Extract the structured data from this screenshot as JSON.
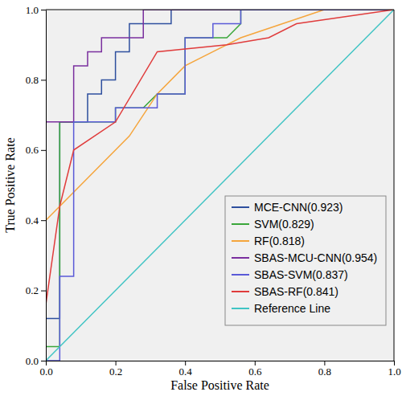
{
  "chart_data": {
    "type": "line",
    "x_label": "False Positive Rate",
    "y_label": "True Positive Rate",
    "xlim": [
      0,
      1
    ],
    "ylim": [
      0,
      1
    ],
    "xticks": [
      {
        "value": 0,
        "label": "0.0"
      },
      0.2,
      0.4,
      0.6,
      0.8,
      {
        "value": 1,
        "label": "1.0"
      }
    ],
    "yticks": [
      {
        "value": 0,
        "label": "0.0"
      },
      0.2,
      0.4,
      0.6,
      0.8,
      {
        "value": 1,
        "label": "1.0"
      }
    ],
    "grid": false,
    "legend": "lower right",
    "series": [
      {
        "name": "MCE-CNN(0.923)",
        "color": "#2e4f9e",
        "x": [
          0,
          0,
          0.04,
          0.04,
          0.12,
          0.12,
          0.16,
          0.16,
          0.2,
          0.2,
          0.24,
          0.24,
          0.36,
          0.36,
          1
        ],
        "values": [
          0,
          0.12,
          0.12,
          0.68,
          0.68,
          0.76,
          0.76,
          0.8,
          0.8,
          0.88,
          0.88,
          0.96,
          0.96,
          1.0,
          1
        ]
      },
      {
        "name": "SVM(0.829)",
        "color": "#3aa63a",
        "x": [
          0,
          0,
          0.04,
          0.04,
          0.2,
          0.2,
          0.28,
          0.32,
          0.4,
          0.4,
          0.52,
          0.56,
          0.56,
          1
        ],
        "values": [
          0,
          0.04,
          0.04,
          0.68,
          0.68,
          0.72,
          0.72,
          0.76,
          0.76,
          0.92,
          0.92,
          0.96,
          1.0,
          1
        ]
      },
      {
        "name": "RF(0.818)",
        "color": "#f5a53c",
        "x": [
          0,
          0,
          0.04,
          0.24,
          0.32,
          0.4,
          0.48,
          0.56,
          0.68,
          0.8,
          1
        ],
        "values": [
          0,
          0.4,
          0.44,
          0.64,
          0.76,
          0.84,
          0.88,
          0.92,
          0.96,
          1.0,
          1
        ]
      },
      {
        "name": "SBAS-MCU-CNN(0.954)",
        "color": "#7a2f9e",
        "x": [
          0,
          0,
          0.08,
          0.08,
          0.12,
          0.12,
          0.16,
          0.16,
          0.28,
          0.28,
          1
        ],
        "values": [
          0,
          0.68,
          0.68,
          0.84,
          0.84,
          0.88,
          0.88,
          0.92,
          0.92,
          1.0,
          1
        ]
      },
      {
        "name": "SBAS-SVM(0.837)",
        "color": "#5a5ad8",
        "x": [
          0,
          0.04,
          0.04,
          0.08,
          0.08,
          0.2,
          0.2,
          0.32,
          0.32,
          0.4,
          0.4,
          0.48,
          0.48,
          0.56,
          0.56,
          1
        ],
        "values": [
          0,
          0,
          0.24,
          0.24,
          0.68,
          0.68,
          0.72,
          0.72,
          0.76,
          0.76,
          0.92,
          0.92,
          0.96,
          0.96,
          1.0,
          1
        ]
      },
      {
        "name": "SBAS-RF(0.841)",
        "color": "#e03c3c",
        "x": [
          0,
          0,
          0.04,
          0.08,
          0.2,
          0.32,
          0.52,
          0.64,
          0.72,
          1
        ],
        "values": [
          0,
          0.16,
          0.44,
          0.6,
          0.68,
          0.88,
          0.9,
          0.92,
          0.96,
          1
        ]
      },
      {
        "name": "Reference Line",
        "color": "#40c4c4",
        "x": [
          0,
          1
        ],
        "values": [
          0,
          1
        ]
      }
    ]
  }
}
